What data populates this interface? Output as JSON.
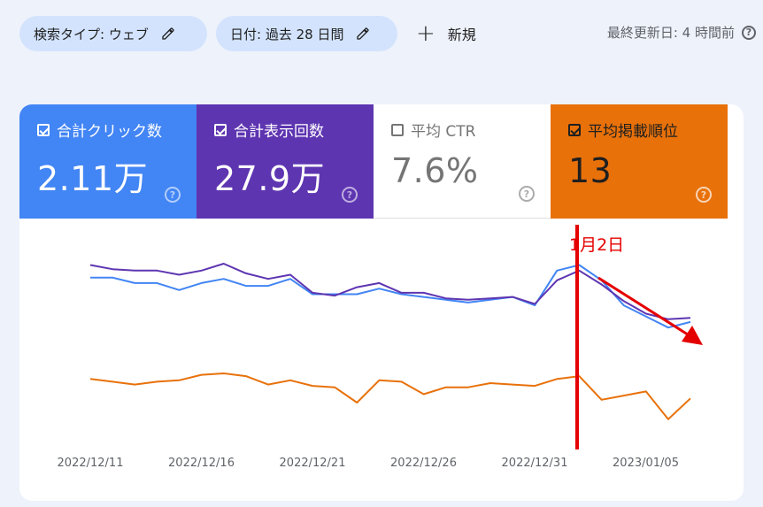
{
  "filters": {
    "search_type": "検索タイプ: ウェブ",
    "date": "日付: 過去 28 日間",
    "new_label": "新規",
    "last_updated": "最終更新日: 4 時間前"
  },
  "metrics": [
    {
      "label": "合計クリック数",
      "value": "2.11万",
      "checked": true,
      "color": "#4285f4"
    },
    {
      "label": "合計表示回数",
      "value": "27.9万",
      "checked": true,
      "color": "#5e35b1"
    },
    {
      "label": "平均 CTR",
      "value": "7.6%",
      "checked": false,
      "color": "#ffffff"
    },
    {
      "label": "平均掲載順位",
      "value": "13",
      "checked": true,
      "color": "#e8710a"
    }
  ],
  "annotation": {
    "label": "1月2日",
    "color": "#e50000"
  },
  "chart_data": {
    "type": "line",
    "x_tick_labels": [
      "2022/12/11",
      "2022/12/16",
      "2022/12/21",
      "2022/12/26",
      "2022/12/31",
      "2023/01/05"
    ],
    "series": [
      {
        "name": "合計クリック数",
        "color": "#4285f4",
        "values": [
          62,
          62,
          58,
          58,
          53,
          58,
          61,
          56,
          56,
          61,
          50,
          50,
          50,
          54,
          50,
          48,
          46,
          44,
          46,
          48,
          42,
          67,
          71,
          60,
          42,
          34,
          26,
          30
        ]
      },
      {
        "name": "合計表示回数",
        "color": "#5e35b1",
        "values": [
          71,
          68,
          67,
          67,
          64,
          67,
          72,
          65,
          61,
          64,
          51,
          49,
          55,
          58,
          51,
          51,
          47,
          46,
          47,
          48,
          43,
          60,
          67,
          57,
          45,
          36,
          32,
          33
        ]
      },
      {
        "name": "平均掲載順位",
        "color": "#e8710a",
        "values": [
          -11,
          -13,
          -15,
          -13,
          -12,
          -8,
          -7,
          -9,
          -15,
          -12,
          -16,
          -17,
          -28,
          -12,
          -13,
          -22,
          -17,
          -17,
          -14,
          -15,
          -16,
          -11,
          -9,
          -26,
          -23,
          -20,
          -40,
          -25
        ]
      }
    ]
  }
}
